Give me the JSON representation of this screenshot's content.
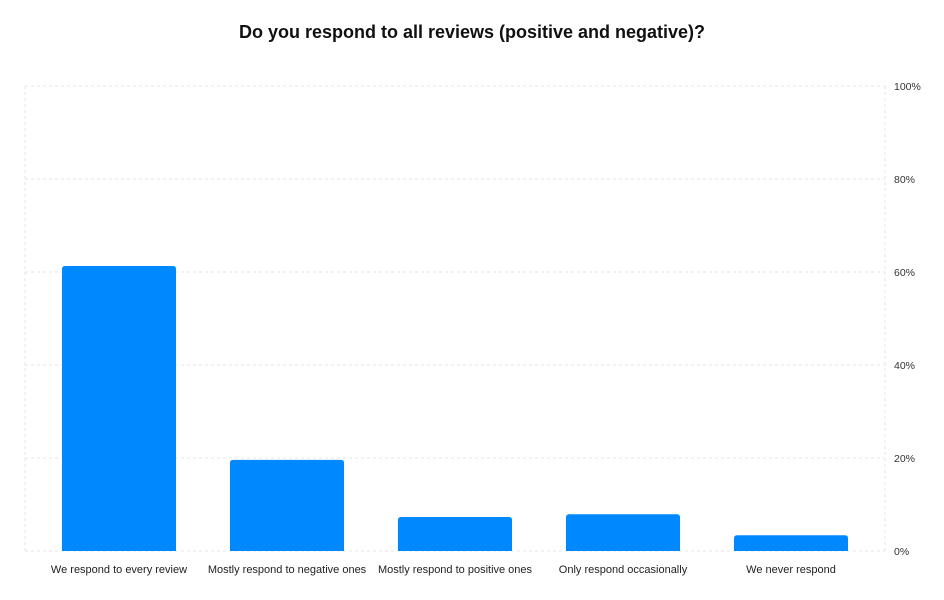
{
  "chart_data": {
    "type": "bar",
    "title": "Do you respond to all reviews (positive and negative)?",
    "xlabel": "",
    "ylabel": "",
    "categories": [
      "We respond to every review",
      "Mostly respond to negative ones",
      "Mostly respond to positive ones",
      "Only respond occasionally",
      "We never respond"
    ],
    "values": [
      61.3,
      19.6,
      7.3,
      7.9,
      3.4
    ],
    "ylim": [
      0,
      100
    ],
    "yticks": [
      0,
      20,
      40,
      60,
      80,
      100
    ],
    "ytick_labels": [
      "0%",
      "20%",
      "40%",
      "60%",
      "80%",
      "100%"
    ],
    "y_axis_position": "right",
    "grid": true,
    "bar_color": "#0088ff",
    "grid_color": "#e6e6e6"
  }
}
